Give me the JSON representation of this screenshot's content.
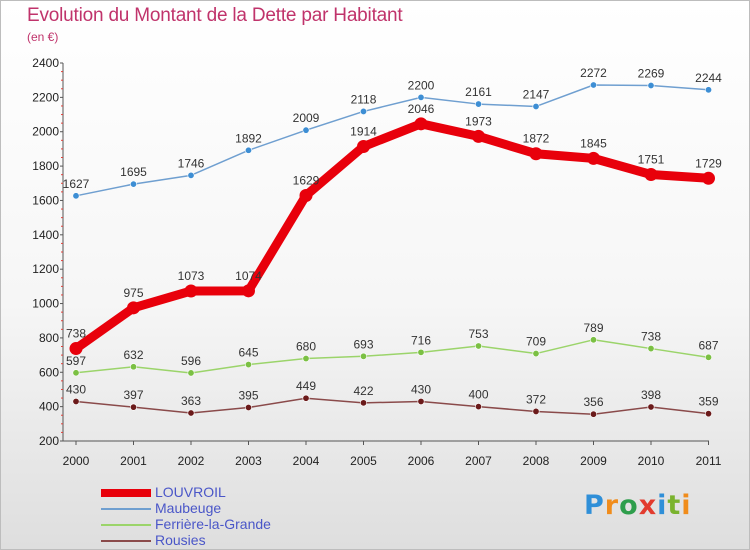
{
  "title": "Evolution du Montant de la Dette par Habitant",
  "unit": "(en €)",
  "brand": {
    "logo_text": "Proxiti",
    "colors": [
      "#2f8fd8",
      "#f08c1b",
      "#2e9e4c",
      "#e23b2e",
      "#2f8fd8",
      "#7ab32e",
      "#f08c1b"
    ]
  },
  "chart_data": {
    "type": "line",
    "title": "Evolution du Montant de la Dette par Habitant",
    "ylabel": "",
    "xlabel": "",
    "x": [
      "2000",
      "2001",
      "2002",
      "2003",
      "2004",
      "2005",
      "2006",
      "2007",
      "2008",
      "2009",
      "2010",
      "2011"
    ],
    "ylim": [
      200,
      2400
    ],
    "yticks": [
      200,
      400,
      600,
      800,
      1000,
      1200,
      1400,
      1600,
      1800,
      2000,
      2200,
      2400
    ],
    "grid": false,
    "legend_position": "bottom-left",
    "series": [
      {
        "name": "LOUVROIL",
        "color": "#e8000b",
        "emphasis": "thick",
        "values": [
          738,
          975,
          1073,
          1074,
          1629,
          1914,
          2046,
          1973,
          1872,
          1845,
          1751,
          1729
        ],
        "labels": [
          "738",
          "975",
          "1073",
          "1074",
          "1629",
          "1914",
          "2046",
          "1973",
          "1872",
          "1845",
          "1751",
          "1729"
        ]
      },
      {
        "name": "Maubeuge",
        "color": "#6f9fd0",
        "marker": "#3d8ed4",
        "values": [
          1627,
          1695,
          1746,
          1892,
          2009,
          2118,
          2200,
          2161,
          2147,
          2272,
          2269,
          2244
        ],
        "labels": [
          "1627",
          "1695",
          "1746",
          "1892",
          "2009",
          "2118",
          "2200",
          "2161",
          "2147",
          "2272",
          "2269",
          "2244"
        ]
      },
      {
        "name": "Ferrière-la-Grande",
        "color": "#9bd46a",
        "marker": "#7bc043",
        "values": [
          597,
          632,
          596,
          645,
          680,
          693,
          716,
          753,
          709,
          789,
          738,
          687
        ],
        "labels": [
          "597",
          "632",
          "596",
          "645",
          "680",
          "693",
          "716",
          "753",
          "709",
          "789",
          "738",
          "687"
        ]
      },
      {
        "name": "Rousies",
        "color": "#8a4a4a",
        "marker": "#6b1a1a",
        "values": [
          430,
          397,
          363,
          395,
          449,
          422,
          430,
          400,
          372,
          356,
          398,
          359
        ],
        "labels": [
          "430",
          "397",
          "363",
          "395",
          "449",
          "422",
          "430",
          "400",
          "372",
          "356",
          "398",
          "359"
        ]
      }
    ]
  }
}
